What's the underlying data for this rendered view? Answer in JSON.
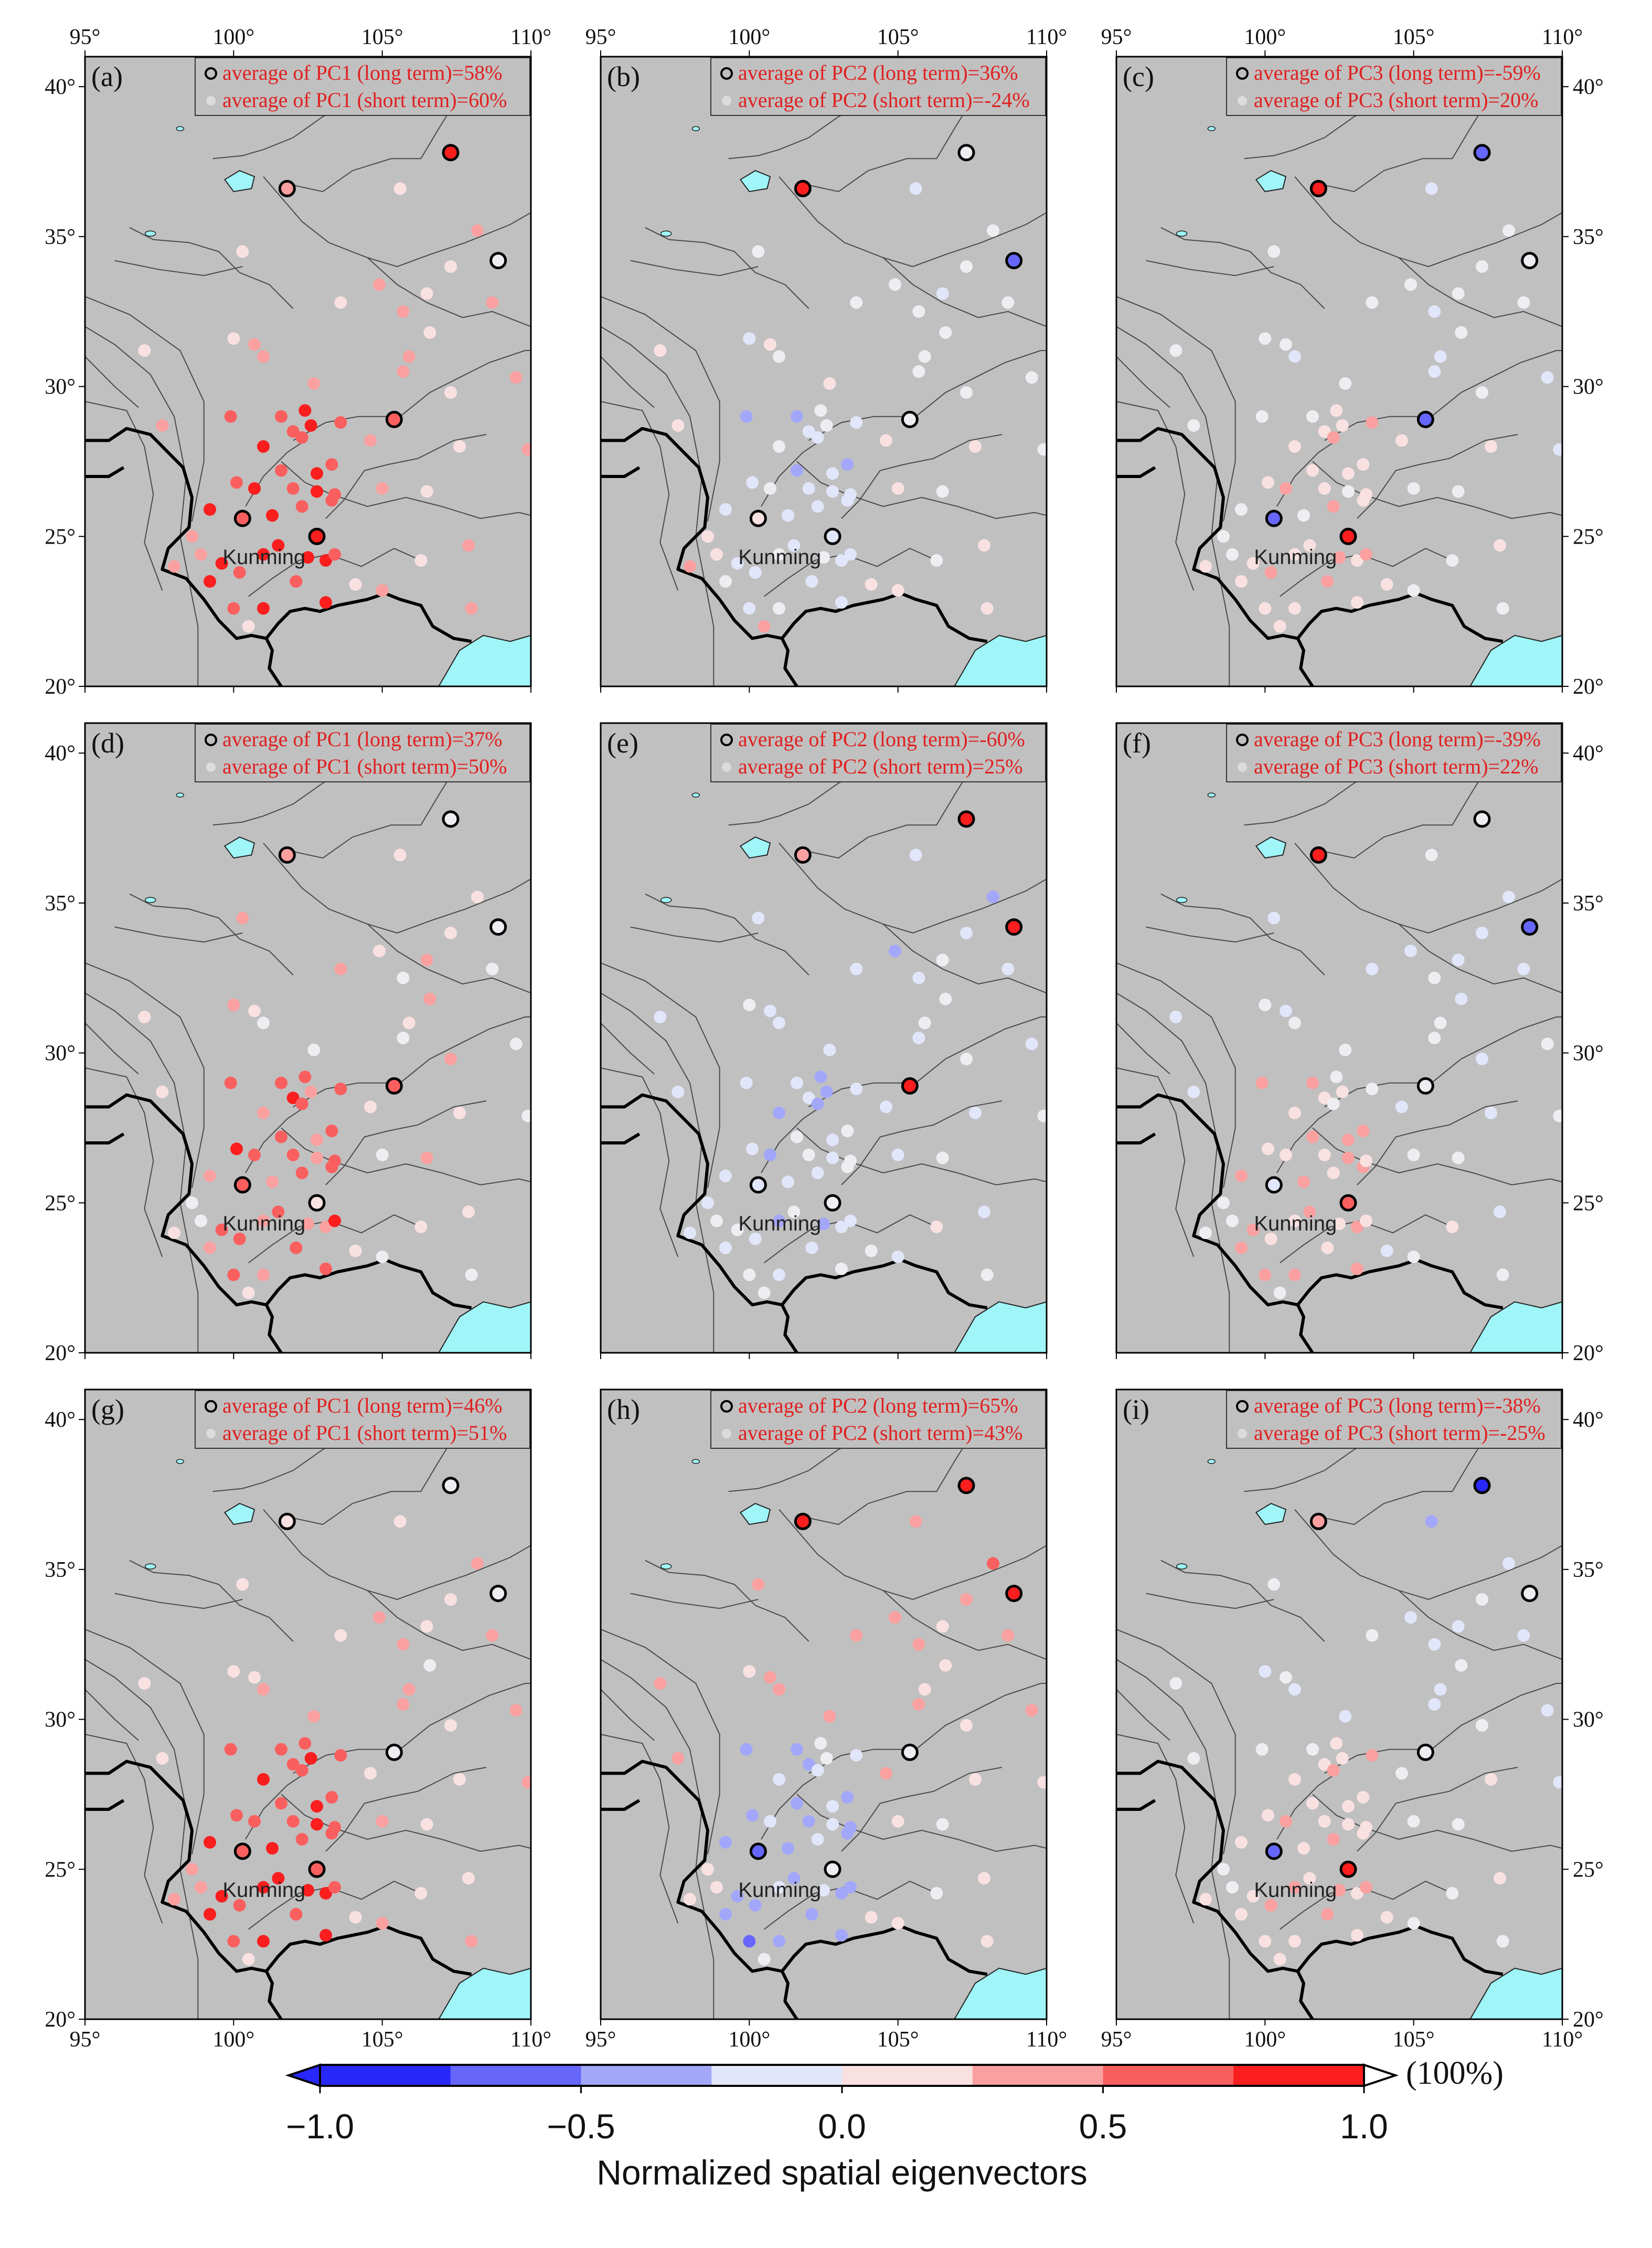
{
  "axes": {
    "lon_ticks": [
      95,
      100,
      105,
      110
    ],
    "lat_ticks": [
      20,
      25,
      30,
      35,
      40
    ],
    "lon_range": [
      95,
      110
    ],
    "lat_range": [
      20,
      41
    ],
    "lon_labels": [
      "95°",
      "100°",
      "105°",
      "110°"
    ],
    "lat_labels": [
      "20°",
      "25°",
      "30°",
      "35°",
      "40°"
    ]
  },
  "city_label": "Kunming",
  "colors": {
    "land": "#c0c0c0",
    "water": "#9ff5f8",
    "legend_text": "#e02020",
    "negative": "#1a1aff",
    "positive": "#ff1a1a"
  },
  "panels": [
    {
      "letter": "(a)",
      "long": "average of PC1 (long term)=58%",
      "short": "average of PC1 (short term)=60%"
    },
    {
      "letter": "(b)",
      "long": "average of PC2 (long term)=36%",
      "short": "average of PC2 (short term)=-24%"
    },
    {
      "letter": "(c)",
      "long": "average of PC3 (long term)=-59%",
      "short": "average of PC3 (short term)=20%"
    },
    {
      "letter": "(d)",
      "long": "average of PC1 (long term)=37%",
      "short": "average of PC1 (short term)=50%"
    },
    {
      "letter": "(e)",
      "long": "average of PC2 (long term)=-60%",
      "short": "average of PC2 (short term)=25%"
    },
    {
      "letter": "(f)",
      "long": "average of PC3 (long term)=-39%",
      "short": "average of PC3 (short term)=22%"
    },
    {
      "letter": "(g)",
      "long": "average of PC1 (long term)=46%",
      "short": "average of PC1 (short term)=51%"
    },
    {
      "letter": "(h)",
      "long": "average of PC2 (long term)=65%",
      "short": "average of PC2 (short term)=43%"
    },
    {
      "letter": "(i)",
      "long": "average of PC3 (long term)=-38%",
      "short": "average of PC3 (short term)=-25%"
    }
  ],
  "stations_long": [
    [
      101.8,
      36.6
    ],
    [
      107.3,
      37.8
    ],
    [
      108.9,
      34.2
    ],
    [
      105.4,
      28.9
    ],
    [
      100.3,
      25.6
    ],
    [
      102.8,
      25.0
    ]
  ],
  "stations_short": [
    [
      97.0,
      31.2
    ],
    [
      97.6,
      28.7
    ],
    [
      98.0,
      24.0
    ],
    [
      98.6,
      25.0
    ],
    [
      98.9,
      24.4
    ],
    [
      99.2,
      23.5
    ],
    [
      99.2,
      25.9
    ],
    [
      99.6,
      24.1
    ],
    [
      99.9,
      29.0
    ],
    [
      100.0,
      22.6
    ],
    [
      100.0,
      31.6
    ],
    [
      100.1,
      26.8
    ],
    [
      100.2,
      23.8
    ],
    [
      100.3,
      34.5
    ],
    [
      100.5,
      22.0
    ],
    [
      100.7,
      26.6
    ],
    [
      100.7,
      31.4
    ],
    [
      101.0,
      24.4
    ],
    [
      101.0,
      28.0
    ],
    [
      101.0,
      31.0
    ],
    [
      101.0,
      22.6
    ],
    [
      101.3,
      25.7
    ],
    [
      101.5,
      24.7
    ],
    [
      101.6,
      29.0
    ],
    [
      101.6,
      27.2
    ],
    [
      102.0,
      26.6
    ],
    [
      102.0,
      28.5
    ],
    [
      102.1,
      23.5
    ],
    [
      102.3,
      26.0
    ],
    [
      102.3,
      28.3
    ],
    [
      102.4,
      29.2
    ],
    [
      102.5,
      24.3
    ],
    [
      102.6,
      28.7
    ],
    [
      102.7,
      30.1
    ],
    [
      102.8,
      27.1
    ],
    [
      102.8,
      26.5
    ],
    [
      103.1,
      24.2
    ],
    [
      103.1,
      22.8
    ],
    [
      103.3,
      26.2
    ],
    [
      103.3,
      27.4
    ],
    [
      103.4,
      26.4
    ],
    [
      103.4,
      24.4
    ],
    [
      103.6,
      32.8
    ],
    [
      103.6,
      28.8
    ],
    [
      104.1,
      23.4
    ],
    [
      104.6,
      28.2
    ],
    [
      104.9,
      33.4
    ],
    [
      105.0,
      26.6
    ],
    [
      105.0,
      23.2
    ],
    [
      105.7,
      30.5
    ],
    [
      105.7,
      32.5
    ],
    [
      105.9,
      31.0
    ],
    [
      105.6,
      36.6
    ],
    [
      106.3,
      24.2
    ],
    [
      106.5,
      26.5
    ],
    [
      106.5,
      33.1
    ],
    [
      106.6,
      31.8
    ],
    [
      107.3,
      29.8
    ],
    [
      107.3,
      34.0
    ],
    [
      107.6,
      28.0
    ],
    [
      107.9,
      24.7
    ],
    [
      108.2,
      35.2
    ],
    [
      108.7,
      32.8
    ],
    [
      108.0,
      22.6
    ],
    [
      109.5,
      30.3
    ],
    [
      109.9,
      27.9
    ]
  ],
  "station_values_long": [
    [
      0.4,
      0.9,
      0.05,
      0.8,
      0.7,
      0.9
    ],
    [
      0.9,
      0.1,
      -0.7,
      0.05,
      0.2,
      -0.3
    ],
    [
      0.9,
      -0.8,
      0.05,
      -0.8,
      -0.7,
      0.9
    ],
    [
      0.4,
      0.05,
      0.05,
      0.7,
      0.7,
      0.2
    ],
    [
      0.4,
      0.95,
      0.95,
      0.95,
      -0.2,
      -0.1
    ],
    [
      0.95,
      0.05,
      -0.8,
      0.05,
      -0.3,
      0.8
    ],
    [
      0.3,
      0.05,
      0.05,
      0.05,
      0.7,
      0.8
    ],
    [
      0.95,
      0.95,
      0.95,
      0.05,
      -0.7,
      -0.1
    ],
    [
      0.4,
      -0.9,
      0.05,
      0.1,
      -0.8,
      0.95
    ]
  ],
  "pc_patterns": [
    {
      "base": 0.35,
      "grad": 0.0,
      "core": 0.55
    },
    {
      "base": 0.1,
      "grad": -0.3,
      "core": -0.35
    },
    {
      "base": 0.0,
      "grad": -0.2,
      "core": 0.25
    },
    {
      "base": 0.25,
      "grad": 0.0,
      "core": 0.45
    },
    {
      "base": -0.1,
      "grad": -0.2,
      "core": -0.2
    },
    {
      "base": -0.05,
      "grad": -0.2,
      "core": 0.35
    },
    {
      "base": 0.3,
      "grad": 0.0,
      "core": 0.55
    },
    {
      "base": 0.25,
      "grad": 0.35,
      "core": -0.55
    },
    {
      "base": -0.05,
      "grad": -0.35,
      "core": 0.3
    }
  ],
  "colorbar": {
    "ticks": [
      -1.0,
      -0.5,
      0.0,
      0.5,
      1.0
    ],
    "tick_labels": [
      "−1.0",
      "−0.5",
      "0.0",
      "0.5",
      "1.0"
    ],
    "title": "Normalized spatial eigenvectors",
    "unit": "(100%)"
  }
}
